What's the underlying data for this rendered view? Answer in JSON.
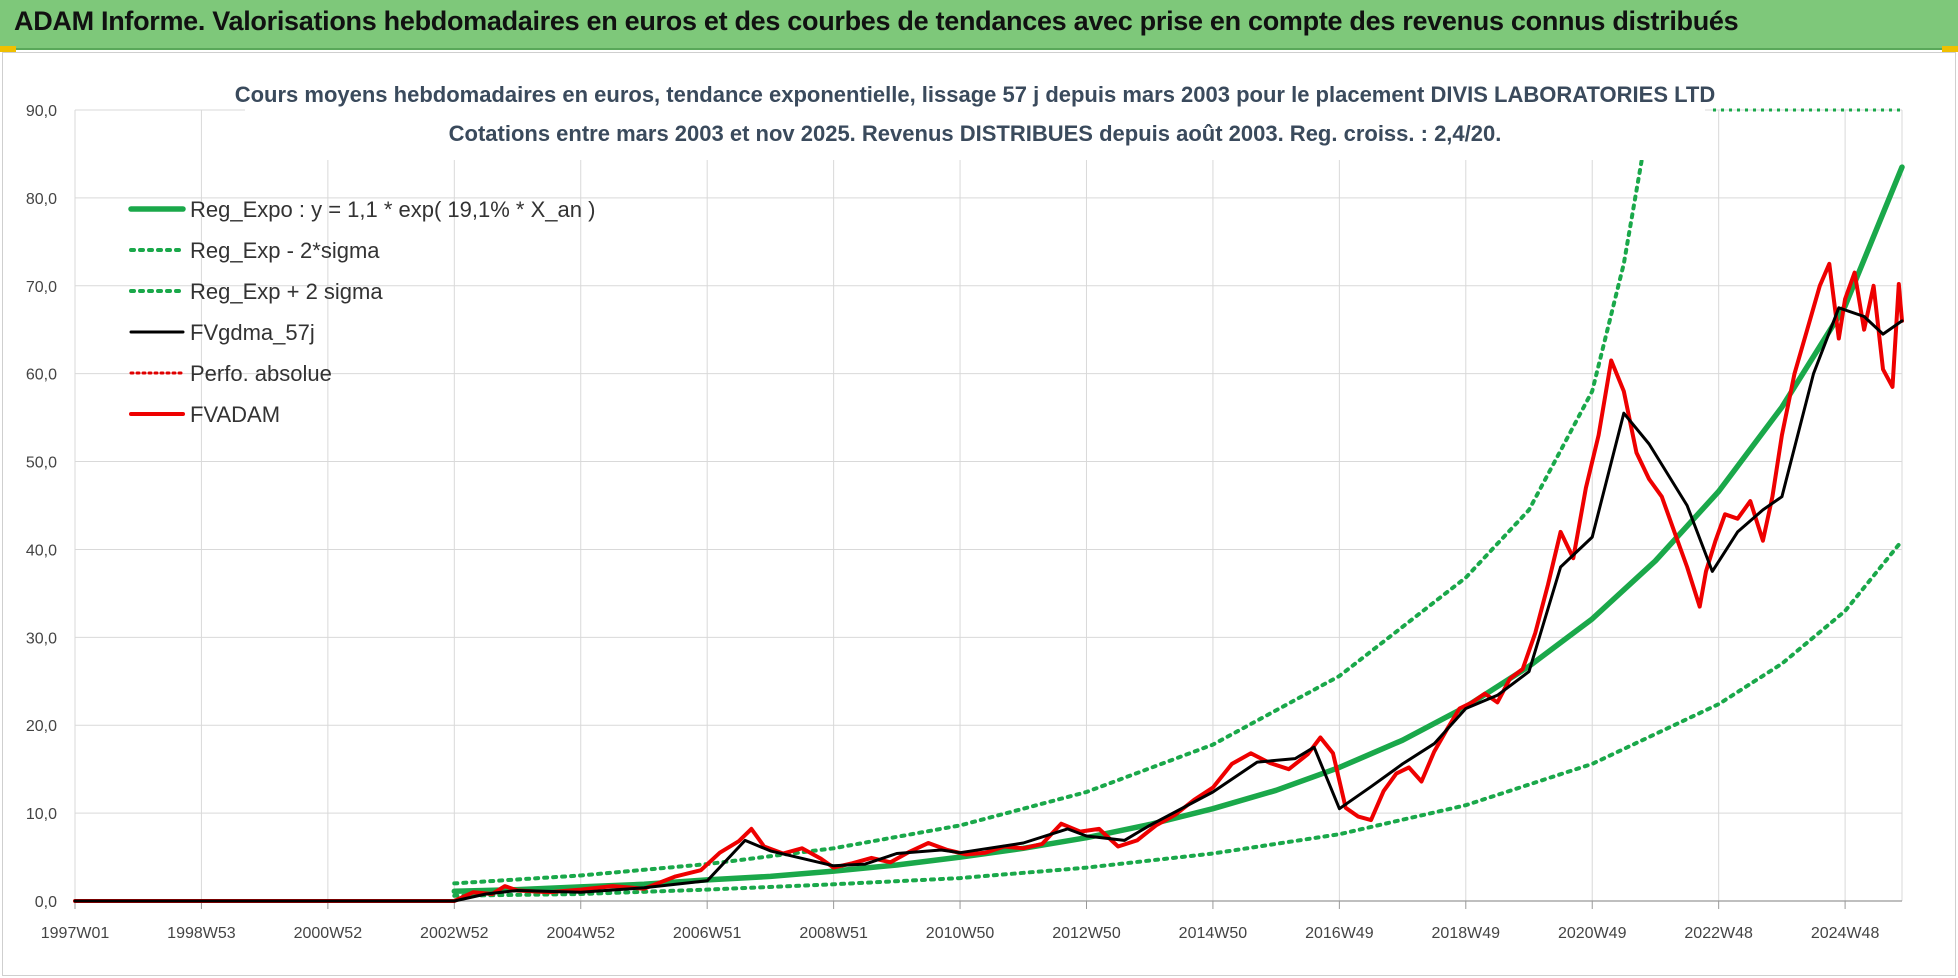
{
  "header": {
    "title": "ADAM Informe. Valorisations hebdomadaires en euros et des courbes de tendances avec prise en compte des revenus connus distribués"
  },
  "colors": {
    "reg_expo": "#1aa84a",
    "sigma": "#1aa84a",
    "fvgdma": "#000000",
    "perfo": "#e00000",
    "fvadam": "#ee0000",
    "grid": "#d9d9d9"
  },
  "chart_data": {
    "type": "line",
    "title_line1": "Cours moyens hebdomadaires en euros, tendance exponentielle, lissage 57 j depuis mars 2003 pour le placement DIVIS LABORATORIES LTD",
    "title_line2": "Cotations entre mars 2003 et nov 2025. Revenus DISTRIBUES depuis août 2003. Reg. croiss. : 2,4/20.",
    "x_range": [
      1997.0,
      2025.9
    ],
    "ylim": [
      0,
      90
    ],
    "y_ticks": [
      "0,0",
      "10,0",
      "20,0",
      "30,0",
      "40,0",
      "50,0",
      "60,0",
      "70,0",
      "80,0",
      "90,0"
    ],
    "x_tick_labels": [
      "1997W01",
      "1998W53",
      "2000W52",
      "2002W52",
      "2004W52",
      "2006W51",
      "2008W51",
      "2010W50",
      "2012W50",
      "2014W50",
      "2016W49",
      "2018W49",
      "2020W49",
      "2022W48",
      "2024W48"
    ],
    "x_tick_years": [
      1997.0,
      1999.0,
      2001.0,
      2003.0,
      2005.0,
      2007.0,
      2009.0,
      2011.0,
      2013.0,
      2015.0,
      2017.0,
      2019.0,
      2021.0,
      2023.0,
      2025.0
    ],
    "legend": [
      "Reg_Expo : y = 1,1 * exp( 19,1% *  X_an )",
      "Reg_Exp - 2*sigma",
      "Reg_Exp + 2 sigma",
      "FVgdma_57j",
      "Perfo. absolue",
      "FVADAM"
    ],
    "series": [
      {
        "name": "Reg_Expo",
        "x": [
          2003.0,
          2004.0,
          2005.0,
          2006.0,
          2007.0,
          2008.0,
          2009.0,
          2010.0,
          2011.0,
          2012.0,
          2013.0,
          2014.0,
          2015.0,
          2016.0,
          2017.0,
          2018.0,
          2019.0,
          2020.0,
          2021.0,
          2022.0,
          2023.0,
          2024.0,
          2025.0,
          2025.9
        ],
        "values": [
          1.1,
          1.3,
          1.6,
          1.9,
          2.4,
          2.8,
          3.4,
          4.1,
          5.0,
          6.0,
          7.2,
          8.7,
          10.5,
          12.6,
          15.2,
          18.3,
          22.1,
          26.7,
          32.1,
          38.7,
          46.6,
          56.2,
          67.7,
          83.5
        ]
      },
      {
        "name": "Reg_Exp - 2*sigma",
        "x": [
          2003.0,
          2005.0,
          2007.0,
          2009.0,
          2011.0,
          2013.0,
          2015.0,
          2017.0,
          2019.0,
          2021.0,
          2023.0,
          2024.0,
          2025.0,
          2025.9
        ],
        "values": [
          0.6,
          0.8,
          1.3,
          1.9,
          2.6,
          3.8,
          5.4,
          7.6,
          10.9,
          15.6,
          22.4,
          27.0,
          33.0,
          41.0
        ]
      },
      {
        "name": "Reg_Exp + 2 sigma",
        "x": [
          2003.0,
          2005.0,
          2007.0,
          2009.0,
          2011.0,
          2013.0,
          2015.0,
          2017.0,
          2019.0,
          2020.0,
          2021.0,
          2021.5,
          2021.8
        ],
        "values": [
          2.0,
          2.9,
          4.2,
          6.0,
          8.6,
          12.4,
          17.8,
          25.6,
          36.8,
          44.5,
          58.0,
          72.5,
          85.0
        ]
      },
      {
        "name": "FVgdma_57j",
        "x": [
          1997.0,
          2003.0,
          2003.5,
          2004.0,
          2005.0,
          2006.0,
          2007.0,
          2007.6,
          2008.0,
          2009.0,
          2009.5,
          2010.0,
          2010.7,
          2011.0,
          2012.0,
          2012.7,
          2013.0,
          2013.6,
          2014.0,
          2015.0,
          2015.7,
          2016.3,
          2016.6,
          2017.0,
          2017.5,
          2018.0,
          2018.5,
          2019.0,
          2019.5,
          2020.0,
          2020.5,
          2021.0,
          2021.5,
          2021.9,
          2022.5,
          2022.9,
          2023.3,
          2023.7,
          2024.0,
          2024.5,
          2024.9,
          2025.3,
          2025.6,
          2025.9
        ],
        "values": [
          0,
          0,
          0.8,
          1.2,
          1.0,
          1.5,
          2.3,
          6.9,
          5.7,
          4.0,
          4.2,
          5.4,
          5.8,
          5.5,
          6.6,
          8.2,
          7.4,
          6.9,
          8.6,
          12.4,
          15.8,
          16.2,
          17.5,
          10.5,
          13.0,
          15.6,
          17.9,
          21.9,
          23.4,
          26.1,
          38.0,
          41.4,
          55.5,
          52.0,
          45.0,
          37.5,
          42.0,
          44.5,
          46.0,
          60.0,
          67.5,
          66.5,
          64.5,
          66.0
        ]
      },
      {
        "name": "Perfo. absolue",
        "x": [
          1997.0,
          2003.0
        ],
        "values": [
          0,
          0
        ]
      },
      {
        "name": "FVADAM",
        "x": [
          1997.0,
          2003.0,
          2003.3,
          2003.6,
          2003.8,
          2004.0,
          2004.5,
          2005.0,
          2005.5,
          2006.0,
          2006.5,
          2006.9,
          2007.2,
          2007.5,
          2007.7,
          2007.9,
          2008.2,
          2008.5,
          2008.8,
          2009.0,
          2009.3,
          2009.6,
          2009.9,
          2010.2,
          2010.5,
          2010.8,
          2011.1,
          2011.4,
          2011.7,
          2012.0,
          2012.3,
          2012.6,
          2012.9,
          2013.2,
          2013.5,
          2013.8,
          2014.1,
          2014.4,
          2014.7,
          2015.0,
          2015.3,
          2015.6,
          2015.9,
          2016.2,
          2016.5,
          2016.7,
          2016.9,
          2017.1,
          2017.3,
          2017.5,
          2017.7,
          2017.9,
          2018.1,
          2018.3,
          2018.5,
          2018.7,
          2018.9,
          2019.1,
          2019.3,
          2019.5,
          2019.7,
          2019.9,
          2020.1,
          2020.3,
          2020.5,
          2020.7,
          2020.9,
          2021.1,
          2021.3,
          2021.5,
          2021.7,
          2021.9,
          2022.1,
          2022.3,
          2022.5,
          2022.7,
          2022.8,
          2022.95,
          2023.1,
          2023.3,
          2023.5,
          2023.7,
          2023.85,
          2024.0,
          2024.2,
          2024.4,
          2024.6,
          2024.75,
          2024.9,
          2025.0,
          2025.15,
          2025.3,
          2025.45,
          2025.6,
          2025.75,
          2025.85,
          2025.9
        ],
        "values": [
          0,
          0,
          1.0,
          0.8,
          1.7,
          1.2,
          1.0,
          1.3,
          1.7,
          1.4,
          2.8,
          3.5,
          5.5,
          6.8,
          8.2,
          6.2,
          5.4,
          6.0,
          4.8,
          3.8,
          4.3,
          4.9,
          4.4,
          5.6,
          6.6,
          5.8,
          5.3,
          5.5,
          6.2,
          6.0,
          6.5,
          8.8,
          7.9,
          8.2,
          6.2,
          6.9,
          8.6,
          9.8,
          11.5,
          12.9,
          15.6,
          16.8,
          15.7,
          15.0,
          16.7,
          18.6,
          16.8,
          10.6,
          9.6,
          9.2,
          12.5,
          14.5,
          15.2,
          13.6,
          17.0,
          19.5,
          21.9,
          22.6,
          23.6,
          22.6,
          25.3,
          26.4,
          30.5,
          36.0,
          42.0,
          39.0,
          47.0,
          53.0,
          61.5,
          58.0,
          51.0,
          48.0,
          46.0,
          42.0,
          38.0,
          33.5,
          37.5,
          41.0,
          44.0,
          43.5,
          45.5,
          41.0,
          46.0,
          53.0,
          60.0,
          65.0,
          70.0,
          72.5,
          64.0,
          68.5,
          71.5,
          65.0,
          70.0,
          60.5,
          58.5,
          70.2,
          66.0
        ]
      }
    ]
  }
}
